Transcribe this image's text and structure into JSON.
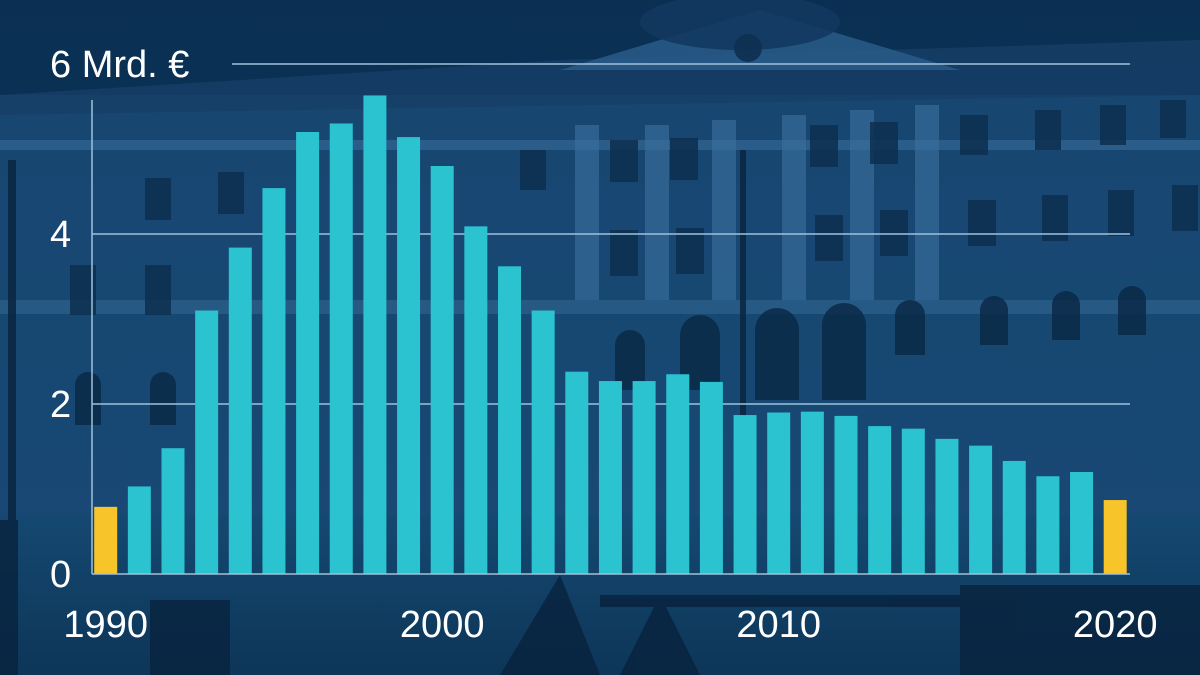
{
  "chart_data": {
    "type": "bar",
    "unit_label": "6 Mrd. €",
    "years": [
      1990,
      1991,
      1992,
      1993,
      1994,
      1995,
      1996,
      1997,
      1998,
      1999,
      2000,
      2001,
      2002,
      2003,
      2004,
      2005,
      2006,
      2007,
      2008,
      2009,
      2010,
      2011,
      2012,
      2013,
      2014,
      2015,
      2016,
      2017,
      2018,
      2019,
      2020
    ],
    "values": [
      0.79,
      1.03,
      1.48,
      3.1,
      3.84,
      4.54,
      5.2,
      5.3,
      5.63,
      5.14,
      4.8,
      4.09,
      3.62,
      3.1,
      2.38,
      2.27,
      2.27,
      2.35,
      2.26,
      1.87,
      1.9,
      1.91,
      1.86,
      1.74,
      1.71,
      1.59,
      1.51,
      1.33,
      1.15,
      1.2,
      0.87
    ],
    "highlight_years": [
      1990,
      2020
    ],
    "y_ticks": [
      "0",
      "2",
      "4",
      "6 Mrd. €"
    ],
    "y_tick_values": [
      0,
      2,
      4,
      6
    ],
    "x_ticks": [
      "1990",
      "2000",
      "2010",
      "2020"
    ],
    "x_tick_years": [
      1990,
      2000,
      2010,
      2020
    ],
    "ylim": [
      0,
      6
    ],
    "grid": true,
    "colors": {
      "bar": "#2cc3d1",
      "highlight": "#f7c52a",
      "grid": "#9fc1dc",
      "axis": "#9fc1dc",
      "text": "#ffffff",
      "background": "#0b3559"
    }
  }
}
